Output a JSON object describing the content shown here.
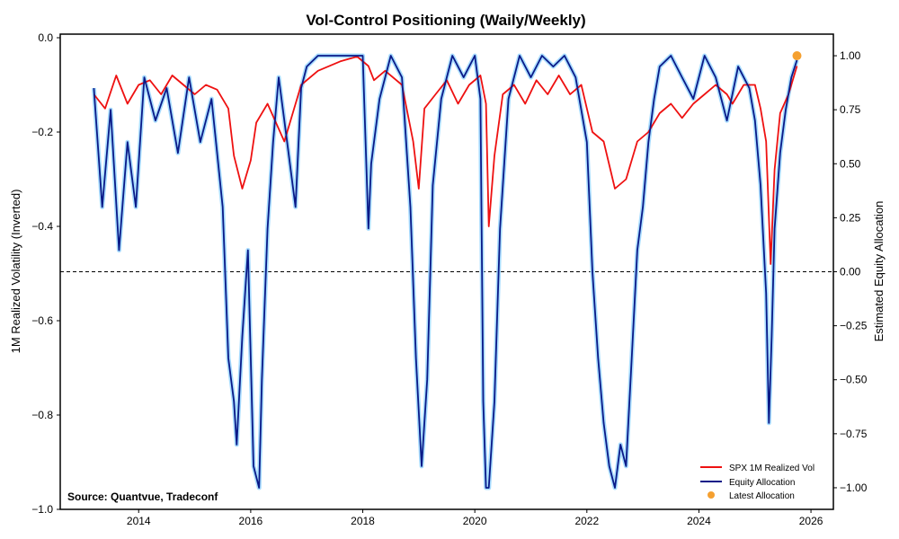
{
  "chart_data": {
    "type": "line",
    "title": "Vol-Control Positioning (Waily/Weekly)",
    "xlabel": "",
    "ylabel_left": "1M Realized Volatility (Inverted)",
    "ylabel_right": "Estimated Equity Allocation",
    "xlim": [
      2012.6,
      2026.4
    ],
    "ylim_left": [
      -1.0,
      0.0
    ],
    "ylim_right": [
      -1.1,
      1.1
    ],
    "x_ticks": [
      "2014",
      "2016",
      "2018",
      "2020",
      "2022",
      "2024",
      "2026"
    ],
    "y_left_ticks": [
      "0.0",
      "−0.2",
      "−0.4",
      "−0.6",
      "−0.8",
      "−1.0"
    ],
    "y_right_ticks": [
      "1.00",
      "0.75",
      "0.50",
      "0.25",
      "0.00",
      "−0.25",
      "−0.50",
      "−0.75",
      "−1.00"
    ],
    "reference_line": {
      "axis": "right",
      "y": 0.0,
      "style": "dashed",
      "color": "#000000"
    },
    "legend": {
      "placement": "lower right",
      "entries": [
        "SPX 1M Realized Vol",
        "Equity Allocation",
        "Latest Allocation"
      ]
    },
    "annotation": "Source: Quantvue, Tradeconf",
    "series": [
      {
        "name": "SPX 1M Realized Vol",
        "axis": "left",
        "color": "#ee1111",
        "x": [
          2013.2,
          2013.4,
          2013.6,
          2013.8,
          2014.0,
          2014.2,
          2014.4,
          2014.6,
          2014.8,
          2015.0,
          2015.2,
          2015.4,
          2015.6,
          2015.7,
          2015.85,
          2016.0,
          2016.1,
          2016.3,
          2016.6,
          2016.9,
          2017.2,
          2017.6,
          2017.9,
          2018.1,
          2018.2,
          2018.4,
          2018.7,
          2018.9,
          2019.0,
          2019.1,
          2019.3,
          2019.5,
          2019.7,
          2019.9,
          2020.1,
          2020.2,
          2020.25,
          2020.35,
          2020.5,
          2020.7,
          2020.9,
          2021.1,
          2021.3,
          2021.5,
          2021.7,
          2021.9,
          2022.1,
          2022.3,
          2022.5,
          2022.7,
          2022.9,
          2023.1,
          2023.3,
          2023.5,
          2023.7,
          2023.9,
          2024.1,
          2024.3,
          2024.5,
          2024.6,
          2024.8,
          2025.0,
          2025.1,
          2025.2,
          2025.28,
          2025.35,
          2025.45,
          2025.6,
          2025.75
        ],
        "values": [
          -0.12,
          -0.15,
          -0.08,
          -0.14,
          -0.1,
          -0.09,
          -0.12,
          -0.08,
          -0.1,
          -0.12,
          -0.1,
          -0.11,
          -0.15,
          -0.25,
          -0.32,
          -0.26,
          -0.18,
          -0.14,
          -0.22,
          -0.1,
          -0.07,
          -0.05,
          -0.04,
          -0.06,
          -0.09,
          -0.07,
          -0.1,
          -0.22,
          -0.32,
          -0.15,
          -0.12,
          -0.09,
          -0.14,
          -0.1,
          -0.08,
          -0.14,
          -0.4,
          -0.25,
          -0.12,
          -0.1,
          -0.14,
          -0.09,
          -0.12,
          -0.08,
          -0.12,
          -0.1,
          -0.2,
          -0.22,
          -0.32,
          -0.3,
          -0.22,
          -0.2,
          -0.16,
          -0.14,
          -0.17,
          -0.14,
          -0.12,
          -0.1,
          -0.12,
          -0.14,
          -0.1,
          -0.1,
          -0.15,
          -0.22,
          -0.48,
          -0.28,
          -0.16,
          -0.12,
          -0.06
        ]
      },
      {
        "name": "Equity Allocation",
        "axis": "right",
        "color": "#0a1a88",
        "x": [
          2013.2,
          2013.35,
          2013.5,
          2013.65,
          2013.8,
          2013.95,
          2014.1,
          2014.3,
          2014.5,
          2014.7,
          2014.9,
          2015.1,
          2015.3,
          2015.5,
          2015.6,
          2015.7,
          2015.75,
          2015.85,
          2015.95,
          2016.05,
          2016.15,
          2016.2,
          2016.3,
          2016.4,
          2016.5,
          2016.6,
          2016.8,
          2016.9,
          2017.0,
          2017.2,
          2017.5,
          2017.8,
          2018.0,
          2018.1,
          2018.15,
          2018.3,
          2018.5,
          2018.7,
          2018.85,
          2018.95,
          2019.05,
          2019.15,
          2019.25,
          2019.4,
          2019.6,
          2019.8,
          2020.0,
          2020.1,
          2020.15,
          2020.2,
          2020.25,
          2020.35,
          2020.45,
          2020.6,
          2020.8,
          2021.0,
          2021.2,
          2021.4,
          2021.6,
          2021.8,
          2022.0,
          2022.1,
          2022.2,
          2022.3,
          2022.4,
          2022.5,
          2022.6,
          2022.7,
          2022.8,
          2022.9,
          2023.0,
          2023.1,
          2023.2,
          2023.3,
          2023.5,
          2023.7,
          2023.9,
          2024.1,
          2024.3,
          2024.5,
          2024.7,
          2024.9,
          2025.0,
          2025.1,
          2025.2,
          2025.25,
          2025.3,
          2025.35,
          2025.45,
          2025.55,
          2025.65,
          2025.75
        ],
        "values": [
          0.85,
          0.3,
          0.75,
          0.1,
          0.6,
          0.3,
          0.9,
          0.7,
          0.85,
          0.55,
          0.9,
          0.6,
          0.8,
          0.3,
          -0.4,
          -0.6,
          -0.8,
          -0.3,
          0.1,
          -0.9,
          -1.0,
          -0.5,
          0.2,
          0.6,
          0.9,
          0.7,
          0.3,
          0.85,
          0.95,
          1.0,
          1.0,
          1.0,
          1.0,
          0.2,
          0.5,
          0.8,
          1.0,
          0.9,
          0.3,
          -0.4,
          -0.9,
          -0.5,
          0.4,
          0.8,
          1.0,
          0.9,
          1.0,
          0.8,
          -0.6,
          -1.0,
          -1.0,
          -0.6,
          0.2,
          0.8,
          1.0,
          0.9,
          1.0,
          0.95,
          1.0,
          0.9,
          0.6,
          0.0,
          -0.4,
          -0.7,
          -0.9,
          -1.0,
          -0.8,
          -0.9,
          -0.4,
          0.1,
          0.3,
          0.6,
          0.8,
          0.95,
          1.0,
          0.9,
          0.8,
          1.0,
          0.9,
          0.7,
          0.95,
          0.85,
          0.7,
          0.4,
          -0.1,
          -0.7,
          -0.3,
          0.2,
          0.55,
          0.75,
          0.9,
          0.98
        ]
      }
    ],
    "latest_allocation": {
      "name": "Latest Allocation",
      "x": 2025.75,
      "value": 1.0,
      "color": "#f5a030"
    }
  }
}
